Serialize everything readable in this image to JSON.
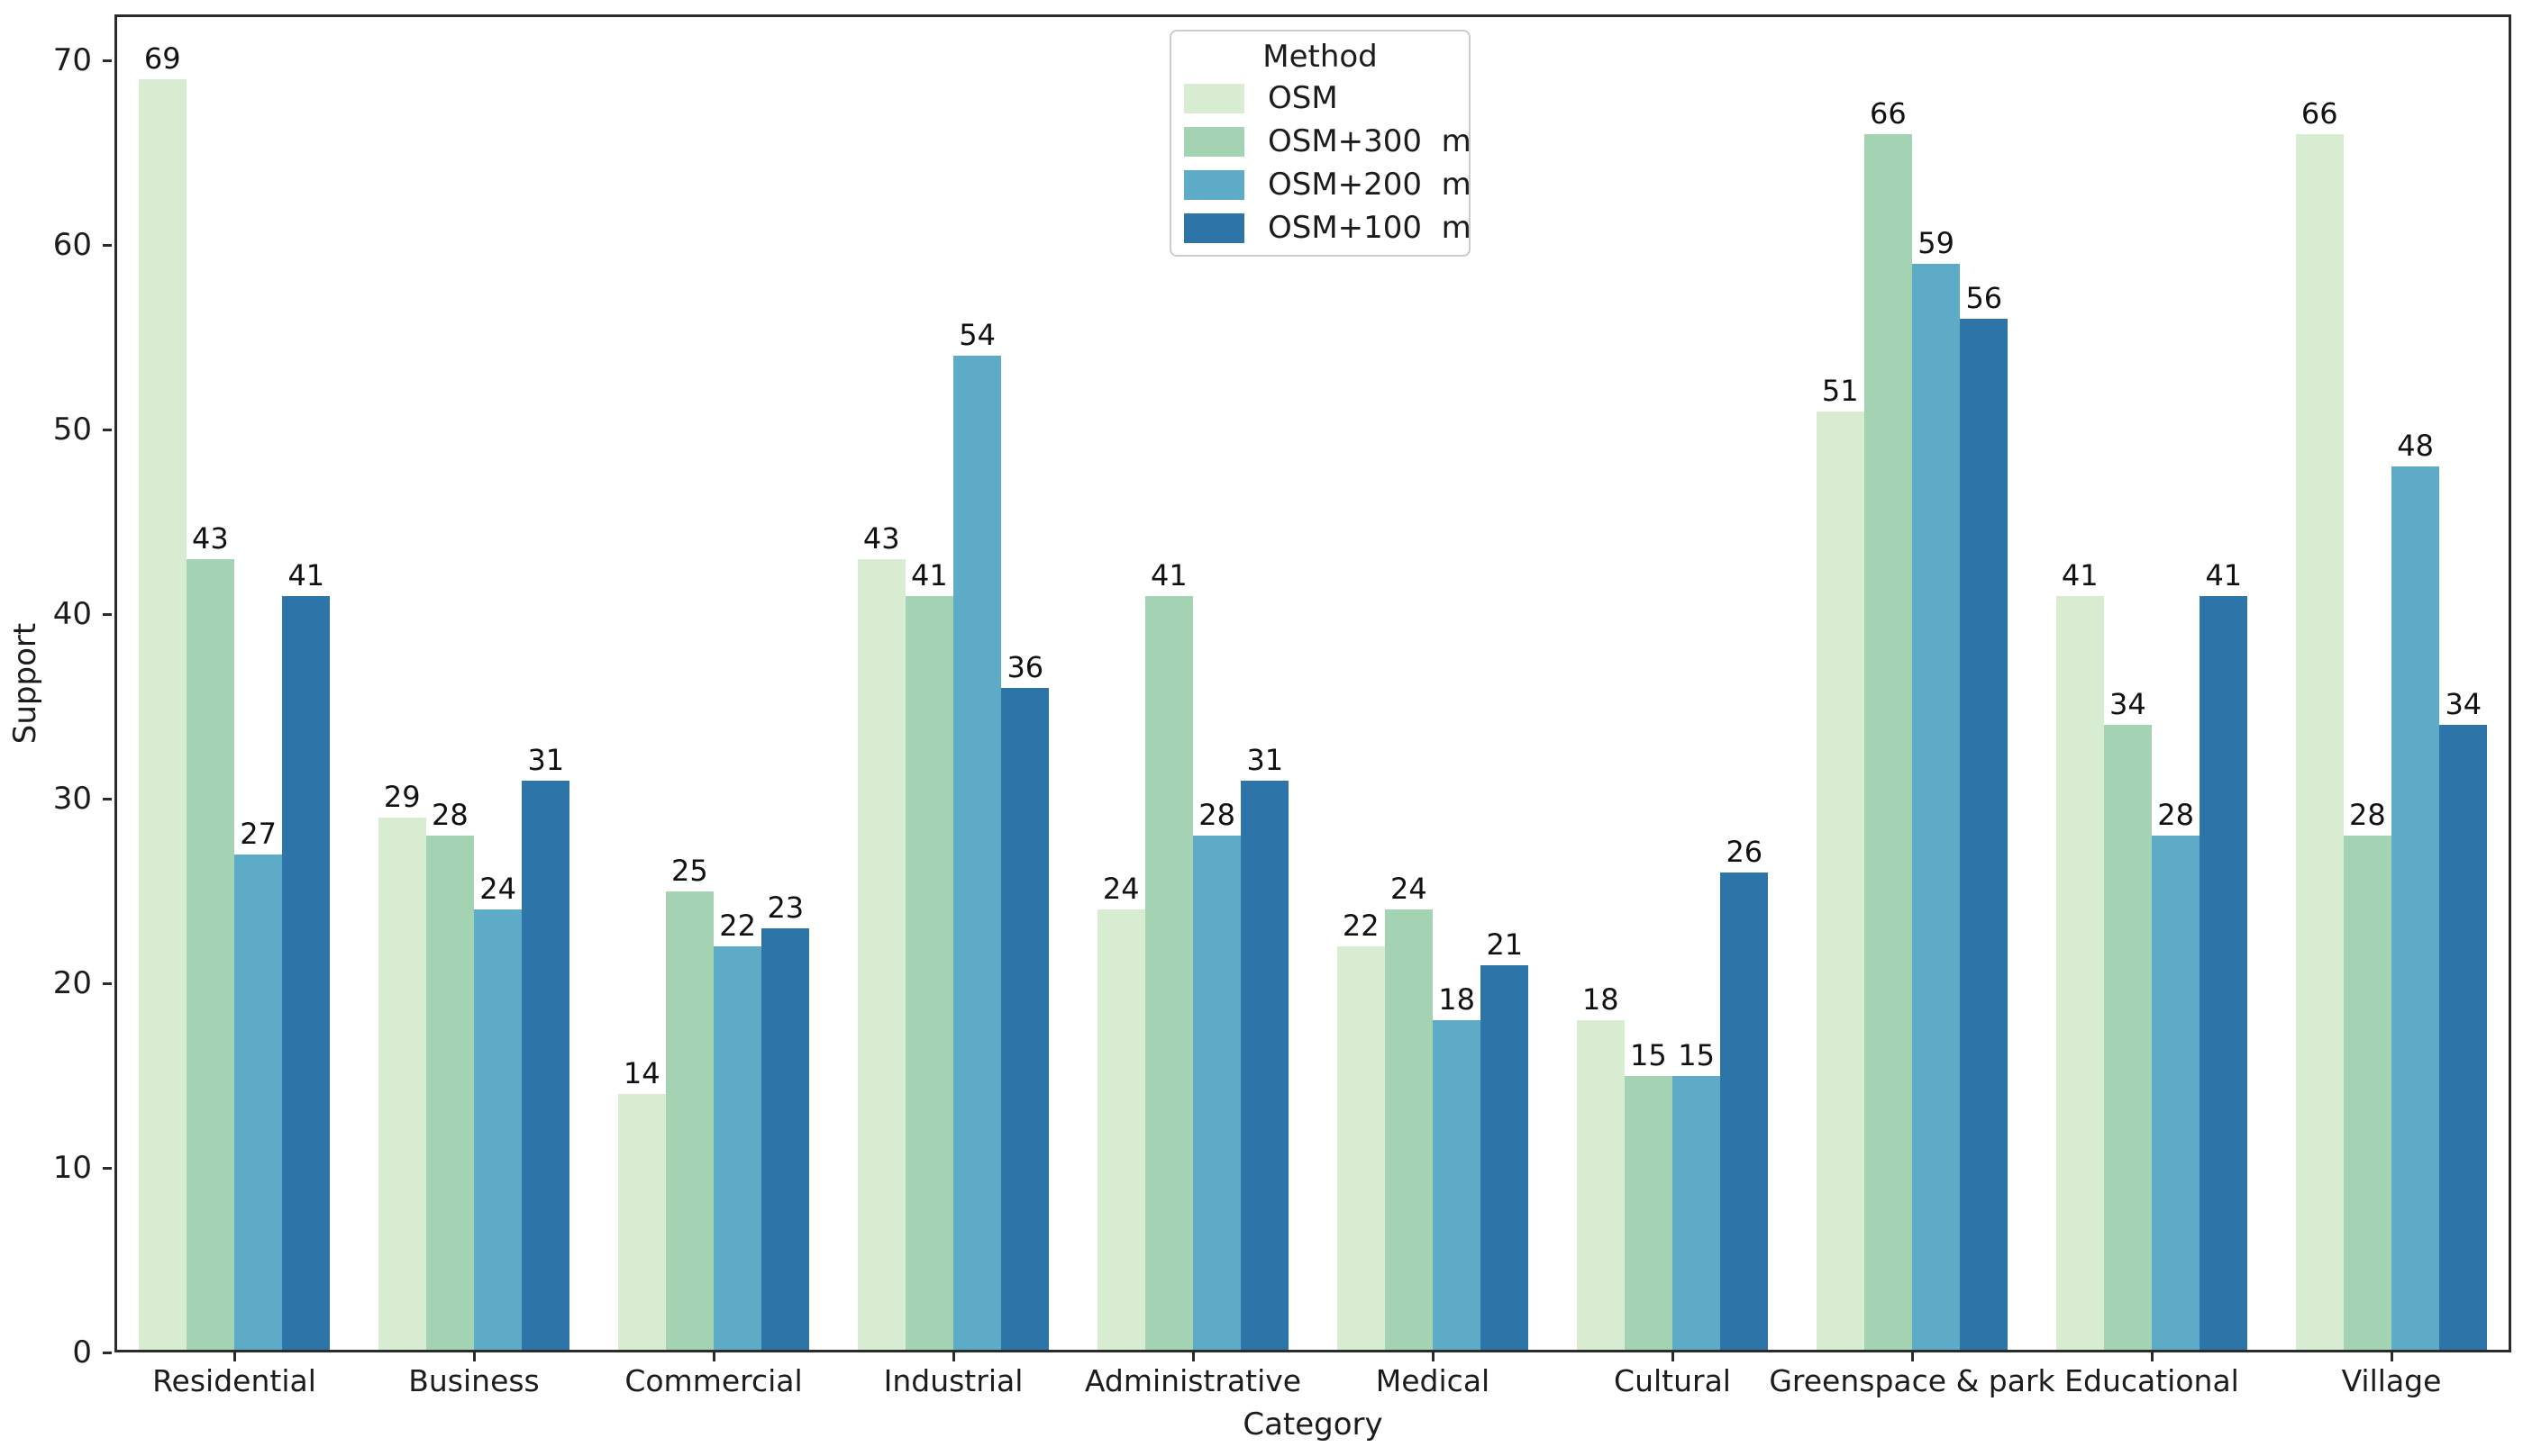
{
  "chart_data": {
    "type": "bar",
    "title": "",
    "xlabel": "Category",
    "ylabel": "Support",
    "categories": [
      "Residential",
      "Business",
      "Commercial",
      "Industrial",
      "Administrative",
      "Medical",
      "Cultural",
      "Greenspace & park",
      "Educational",
      "Village"
    ],
    "series": [
      {
        "name": "OSM",
        "color": "#d7ecd1",
        "values": [
          69,
          29,
          14,
          43,
          24,
          22,
          18,
          51,
          41,
          66
        ]
      },
      {
        "name": "OSM+300  m",
        "color": "#a3d3b2",
        "values": [
          43,
          28,
          25,
          41,
          41,
          24,
          15,
          66,
          34,
          28
        ]
      },
      {
        "name": "OSM+200  m",
        "color": "#5dabc6",
        "values": [
          27,
          24,
          22,
          54,
          28,
          18,
          15,
          59,
          28,
          48
        ]
      },
      {
        "name": "OSM+100  m",
        "color": "#2d74a8",
        "values": [
          41,
          31,
          23,
          36,
          31,
          21,
          26,
          56,
          41,
          34
        ]
      }
    ],
    "ylim": [
      0,
      72.5
    ],
    "yticks": [
      0,
      10,
      20,
      30,
      40,
      50,
      60,
      70
    ],
    "legend": {
      "title": "Method",
      "position": "upper center"
    },
    "grid": false,
    "bar_value_labels": true
  }
}
